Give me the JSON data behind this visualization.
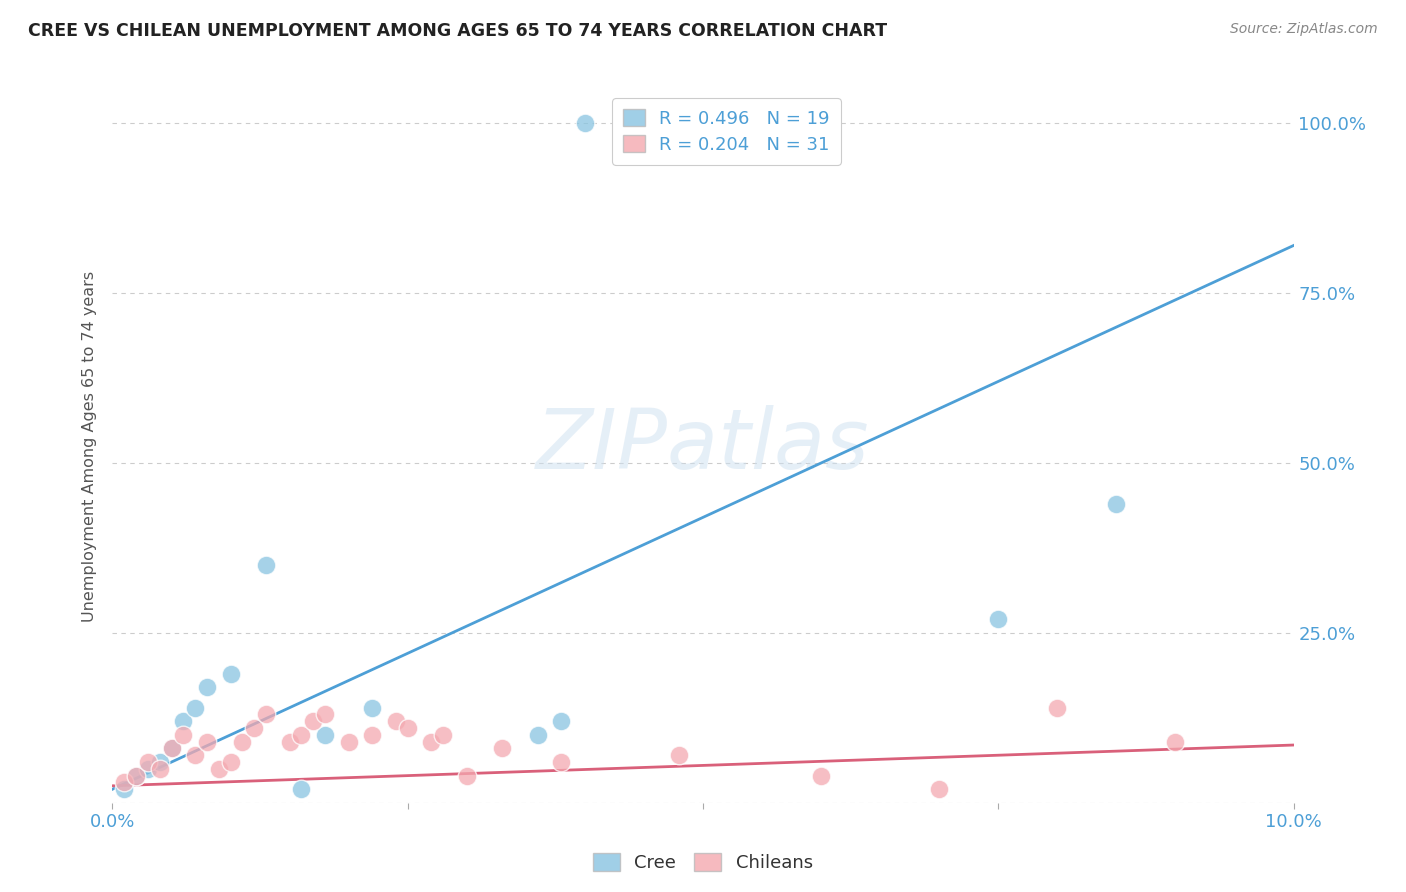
{
  "title": "CREE VS CHILEAN UNEMPLOYMENT AMONG AGES 65 TO 74 YEARS CORRELATION CHART",
  "source": "Source: ZipAtlas.com",
  "ylabel": "Unemployment Among Ages 65 to 74 years",
  "xlim": [
    0.0,
    0.1
  ],
  "ylim": [
    0.0,
    1.05
  ],
  "xtick_positions": [
    0.0,
    0.025,
    0.05,
    0.075,
    0.1
  ],
  "xtick_labels": [
    "0.0%",
    "",
    "",
    "",
    "10.0%"
  ],
  "ytick_positions": [
    0.0,
    0.25,
    0.5,
    0.75,
    1.0
  ],
  "ytick_labels": [
    "",
    "25.0%",
    "50.0%",
    "75.0%",
    "100.0%"
  ],
  "cree_color": "#89c4e1",
  "chilean_color": "#f4a9b0",
  "cree_edge_color": "#5ba3cc",
  "chilean_edge_color": "#e87a8a",
  "cree_line_color": "#4d9fd6",
  "chilean_line_color": "#d9607a",
  "cree_R": 0.496,
  "cree_N": 19,
  "chilean_R": 0.204,
  "chilean_N": 31,
  "cree_points_x": [
    0.001,
    0.002,
    0.003,
    0.004,
    0.005,
    0.006,
    0.007,
    0.008,
    0.01,
    0.013,
    0.016,
    0.018,
    0.022,
    0.036,
    0.038,
    0.04,
    0.05,
    0.075,
    0.085
  ],
  "cree_points_y": [
    0.02,
    0.04,
    0.05,
    0.06,
    0.08,
    0.12,
    0.14,
    0.17,
    0.19,
    0.35,
    0.02,
    0.1,
    0.14,
    0.1,
    0.12,
    1.0,
    1.0,
    0.27,
    0.44
  ],
  "chilean_points_x": [
    0.001,
    0.002,
    0.003,
    0.004,
    0.005,
    0.006,
    0.007,
    0.008,
    0.009,
    0.01,
    0.011,
    0.012,
    0.013,
    0.015,
    0.016,
    0.017,
    0.018,
    0.02,
    0.022,
    0.024,
    0.025,
    0.027,
    0.028,
    0.03,
    0.033,
    0.038,
    0.048,
    0.06,
    0.07,
    0.08,
    0.09
  ],
  "chilean_points_y": [
    0.03,
    0.04,
    0.06,
    0.05,
    0.08,
    0.1,
    0.07,
    0.09,
    0.05,
    0.06,
    0.09,
    0.11,
    0.13,
    0.09,
    0.1,
    0.12,
    0.13,
    0.09,
    0.1,
    0.12,
    0.11,
    0.09,
    0.1,
    0.04,
    0.08,
    0.06,
    0.07,
    0.04,
    0.02,
    0.14,
    0.09
  ],
  "background_color": "#ffffff",
  "grid_color": "#cccccc",
  "tick_color": "#4d9fd6",
  "label_color": "#555555",
  "title_color": "#222222",
  "source_color": "#888888"
}
